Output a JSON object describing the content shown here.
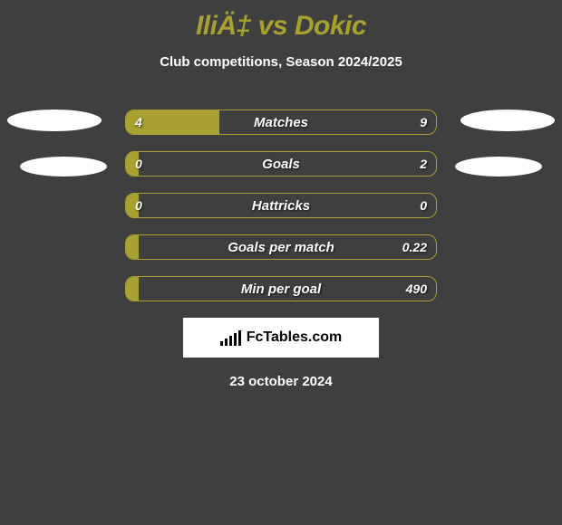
{
  "header": {
    "title": "IliÄ‡ vs Dokic",
    "subtitle": "Club competitions, Season 2024/2025"
  },
  "bars": [
    {
      "label": "Matches",
      "left_value": "4",
      "right_value": "9",
      "fill_pct": 30,
      "fill_color": "#a8a030",
      "border_color": "#a8a030"
    },
    {
      "label": "Goals",
      "left_value": "0",
      "right_value": "2",
      "fill_pct": 4,
      "fill_color": "#a8a030",
      "border_color": "#a8a030"
    },
    {
      "label": "Hattricks",
      "left_value": "0",
      "right_value": "0",
      "fill_pct": 4,
      "fill_color": "#a8a030",
      "border_color": "#a8a030"
    },
    {
      "label": "Goals per match",
      "left_value": "",
      "right_value": "0.22",
      "fill_pct": 4,
      "fill_color": "#a8a030",
      "border_color": "#a8a030"
    },
    {
      "label": "Min per goal",
      "left_value": "",
      "right_value": "490",
      "fill_pct": 4,
      "fill_color": "#a8a030",
      "border_color": "#a8a030"
    }
  ],
  "brand": {
    "text": "FcTables.com"
  },
  "date": "23 october 2024",
  "colors": {
    "background": "#3f3f3f",
    "accent": "#a8a030",
    "text_light": "#ffffff",
    "brand_bg": "#ffffff",
    "brand_text": "#000000"
  }
}
